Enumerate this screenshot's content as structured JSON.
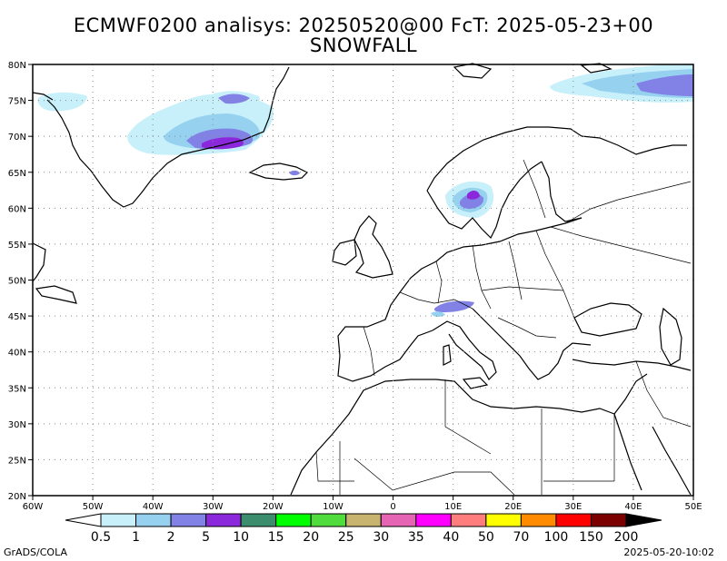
{
  "title_line1": "ECMWF0200 analisys: 20250520@00 FcT: 2025-05-23+00",
  "title_line2": "SNOWFALL",
  "map": {
    "lon_range": [
      -60,
      50
    ],
    "lat_range": [
      20,
      80
    ],
    "lon_ticks": [
      "60W",
      "50W",
      "40W",
      "30W",
      "20W",
      "10W",
      "0",
      "10E",
      "20E",
      "30E",
      "40E",
      "50E"
    ],
    "lat_ticks": [
      "20N",
      "25N",
      "30N",
      "35N",
      "40N",
      "45N",
      "50N",
      "55N",
      "60N",
      "65N",
      "70N",
      "75N",
      "80N"
    ],
    "grid": true
  },
  "colorbar": {
    "labels": [
      "0.5",
      "1",
      "2",
      "5",
      "10",
      "15",
      "20",
      "25",
      "30",
      "35",
      "40",
      "50",
      "70",
      "100",
      "150",
      "200"
    ],
    "colors": [
      "#c8f0fa",
      "#96d2f0",
      "#8282e6",
      "#8c28dc",
      "#3c8c6e",
      "#00ff00",
      "#50dc3c",
      "#c8b46e",
      "#e664b4",
      "#ff00ff",
      "#ff7d7d",
      "#ffff00",
      "#ff8c00",
      "#ff0000",
      "#7d0000"
    ]
  },
  "footer_left": "GrADS/COLA",
  "footer_right": "2025-05-20-10:02"
}
